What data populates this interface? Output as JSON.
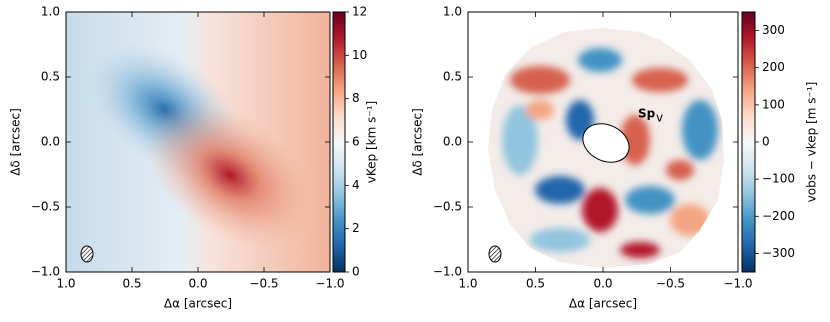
{
  "chart_data": [
    {
      "type": "heatmap",
      "xlabel": "Δα [arcsec]",
      "ylabel": "Δδ [arcsec]",
      "xlim": [
        1.0,
        -1.0
      ],
      "ylim": [
        -1.0,
        1.0
      ],
      "xticks": [
        {
          "value": 1.0,
          "label": "1.0"
        },
        {
          "value": 0.5,
          "label": "0.5"
        },
        {
          "value": 0,
          "label": "0.0"
        },
        {
          "value": -0.5,
          "label": "−0.5"
        },
        {
          "value": -1.0,
          "label": "−1.0"
        }
      ],
      "yticks": [
        {
          "value": -1.0,
          "label": "−1.0"
        },
        {
          "value": -0.5,
          "label": "−0.5"
        },
        {
          "value": 0,
          "label": "0.0"
        },
        {
          "value": 0.5,
          "label": "0.5"
        },
        {
          "value": 1.0,
          "label": "1.0"
        }
      ],
      "colorbar": {
        "label": "vKep [km s⁻¹]",
        "lim": [
          0,
          12
        ],
        "ticks": [
          0,
          2,
          4,
          6,
          8,
          10,
          12
        ],
        "colormap": [
          "#053061",
          "#2166ac",
          "#4393c3",
          "#92c5de",
          "#d1e5f0",
          "#f7f7f7",
          "#fddbc7",
          "#f4a582",
          "#d6604d",
          "#b2182b",
          "#67001f"
        ]
      }
    },
    {
      "type": "heatmap",
      "xlabel": "Δα [arcsec]",
      "ylabel": "Δδ [arcsec]",
      "xlim": [
        1.0,
        -1.0
      ],
      "ylim": [
        -1.0,
        1.0
      ],
      "xticks": [
        {
          "value": 1.0,
          "label": "1.0"
        },
        {
          "value": 0.5,
          "label": "0.5"
        },
        {
          "value": 0,
          "label": "0.0"
        },
        {
          "value": -0.5,
          "label": "−0.5"
        },
        {
          "value": -1.0,
          "label": "−1.0"
        }
      ],
      "yticks": [
        {
          "value": -1.0,
          "label": "−1.0"
        },
        {
          "value": -0.5,
          "label": "−0.5"
        },
        {
          "value": 0,
          "label": "0.0"
        },
        {
          "value": 0.5,
          "label": "0.5"
        },
        {
          "value": 1.0,
          "label": "1.0"
        }
      ],
      "annotation": {
        "text": "Sp",
        "subscript": "v"
      },
      "colorbar": {
        "label": "vobs − vkep [m s⁻¹]",
        "lim": [
          -350,
          350
        ],
        "ticks": [
          {
            "value": -300,
            "label": "−300"
          },
          {
            "value": -200,
            "label": "−200"
          },
          {
            "value": -100,
            "label": "−100"
          },
          0,
          100,
          200,
          300
        ],
        "colormap": [
          "#053061",
          "#2166ac",
          "#4393c3",
          "#92c5de",
          "#d1e5f0",
          "#f7f7f7",
          "#fddbc7",
          "#f4a582",
          "#d6604d",
          "#b2182b",
          "#67001f"
        ]
      }
    }
  ]
}
